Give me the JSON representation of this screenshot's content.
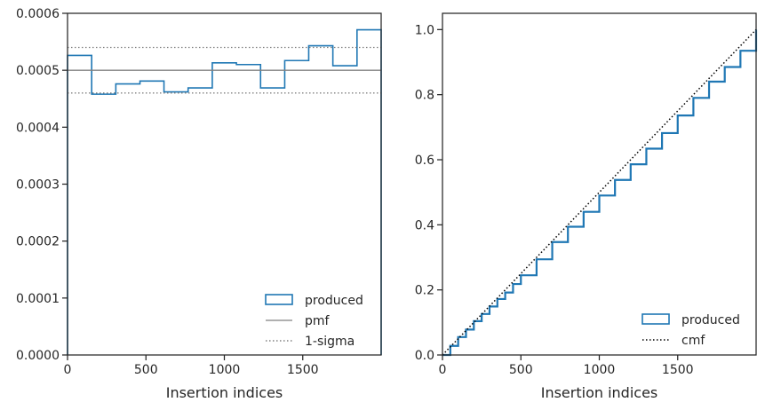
{
  "chart_data": [
    {
      "type": "step",
      "xlabel": "Insertion indices",
      "xlim": [
        0,
        2000
      ],
      "ylim": [
        0,
        0.0006
      ],
      "x_ticks": [
        0,
        500,
        1000,
        1500
      ],
      "x_tick_labels": [
        "0",
        "500",
        "1000",
        "1500"
      ],
      "y_ticks": [
        0,
        0.0001,
        0.0002,
        0.0003,
        0.0004,
        0.0005,
        0.0006
      ],
      "y_tick_labels": [
        "0.0000",
        "0.0001",
        "0.0002",
        "0.0003",
        "0.0004",
        "0.0005",
        "0.0006"
      ],
      "grid": false,
      "legend_position": "lower-right",
      "series": [
        {
          "name": "produced",
          "kind": "histogram-step",
          "color": "#1f77b4",
          "bin_edges": [
            0,
            154,
            308,
            462,
            615,
            769,
            923,
            1077,
            1231,
            1385,
            1538,
            1692,
            1846,
            2000
          ],
          "values": [
            0.000526,
            0.000458,
            0.000476,
            0.000481,
            0.000462,
            0.000469,
            0.000513,
            0.00051,
            0.000469,
            0.000517,
            0.000543,
            0.000508,
            0.000571
          ]
        },
        {
          "name": "pmf",
          "kind": "hline",
          "color": "#808080",
          "y": 0.0005
        },
        {
          "name": "1-sigma",
          "kind": "hline-dotted",
          "color": "#808080",
          "y": [
            0.00046,
            0.00054
          ]
        }
      ]
    },
    {
      "type": "step",
      "xlabel": "Insertion indices",
      "xlim": [
        0,
        2000
      ],
      "ylim": [
        0,
        1.05
      ],
      "x_ticks": [
        0,
        500,
        1000,
        1500
      ],
      "x_tick_labels": [
        "0",
        "500",
        "1000",
        "1500"
      ],
      "y_ticks": [
        0,
        0.2,
        0.4,
        0.6,
        0.8,
        1.0
      ],
      "y_tick_labels": [
        "0.0",
        "0.2",
        "0.4",
        "0.6",
        "0.8",
        "1.0"
      ],
      "grid": false,
      "legend_position": "lower-right",
      "series": [
        {
          "name": "produced",
          "kind": "cumulative-step",
          "color": "#1f77b4",
          "x": [
            0,
            50,
            100,
            150,
            200,
            250,
            300,
            350,
            400,
            450,
            500,
            600,
            700,
            800,
            900,
            1000,
            1100,
            1200,
            1300,
            1400,
            1500,
            1600,
            1700,
            1800,
            1900,
            2000
          ],
          "y": [
            0,
            0.028,
            0.055,
            0.078,
            0.104,
            0.126,
            0.149,
            0.172,
            0.192,
            0.218,
            0.245,
            0.294,
            0.347,
            0.394,
            0.44,
            0.49,
            0.538,
            0.586,
            0.634,
            0.682,
            0.736,
            0.79,
            0.84,
            0.885,
            0.935,
            1.0
          ]
        },
        {
          "name": "cmf",
          "kind": "line-dotted",
          "color": "#000000",
          "x": [
            0,
            2000
          ],
          "y": [
            0,
            1.0
          ]
        }
      ]
    }
  ]
}
